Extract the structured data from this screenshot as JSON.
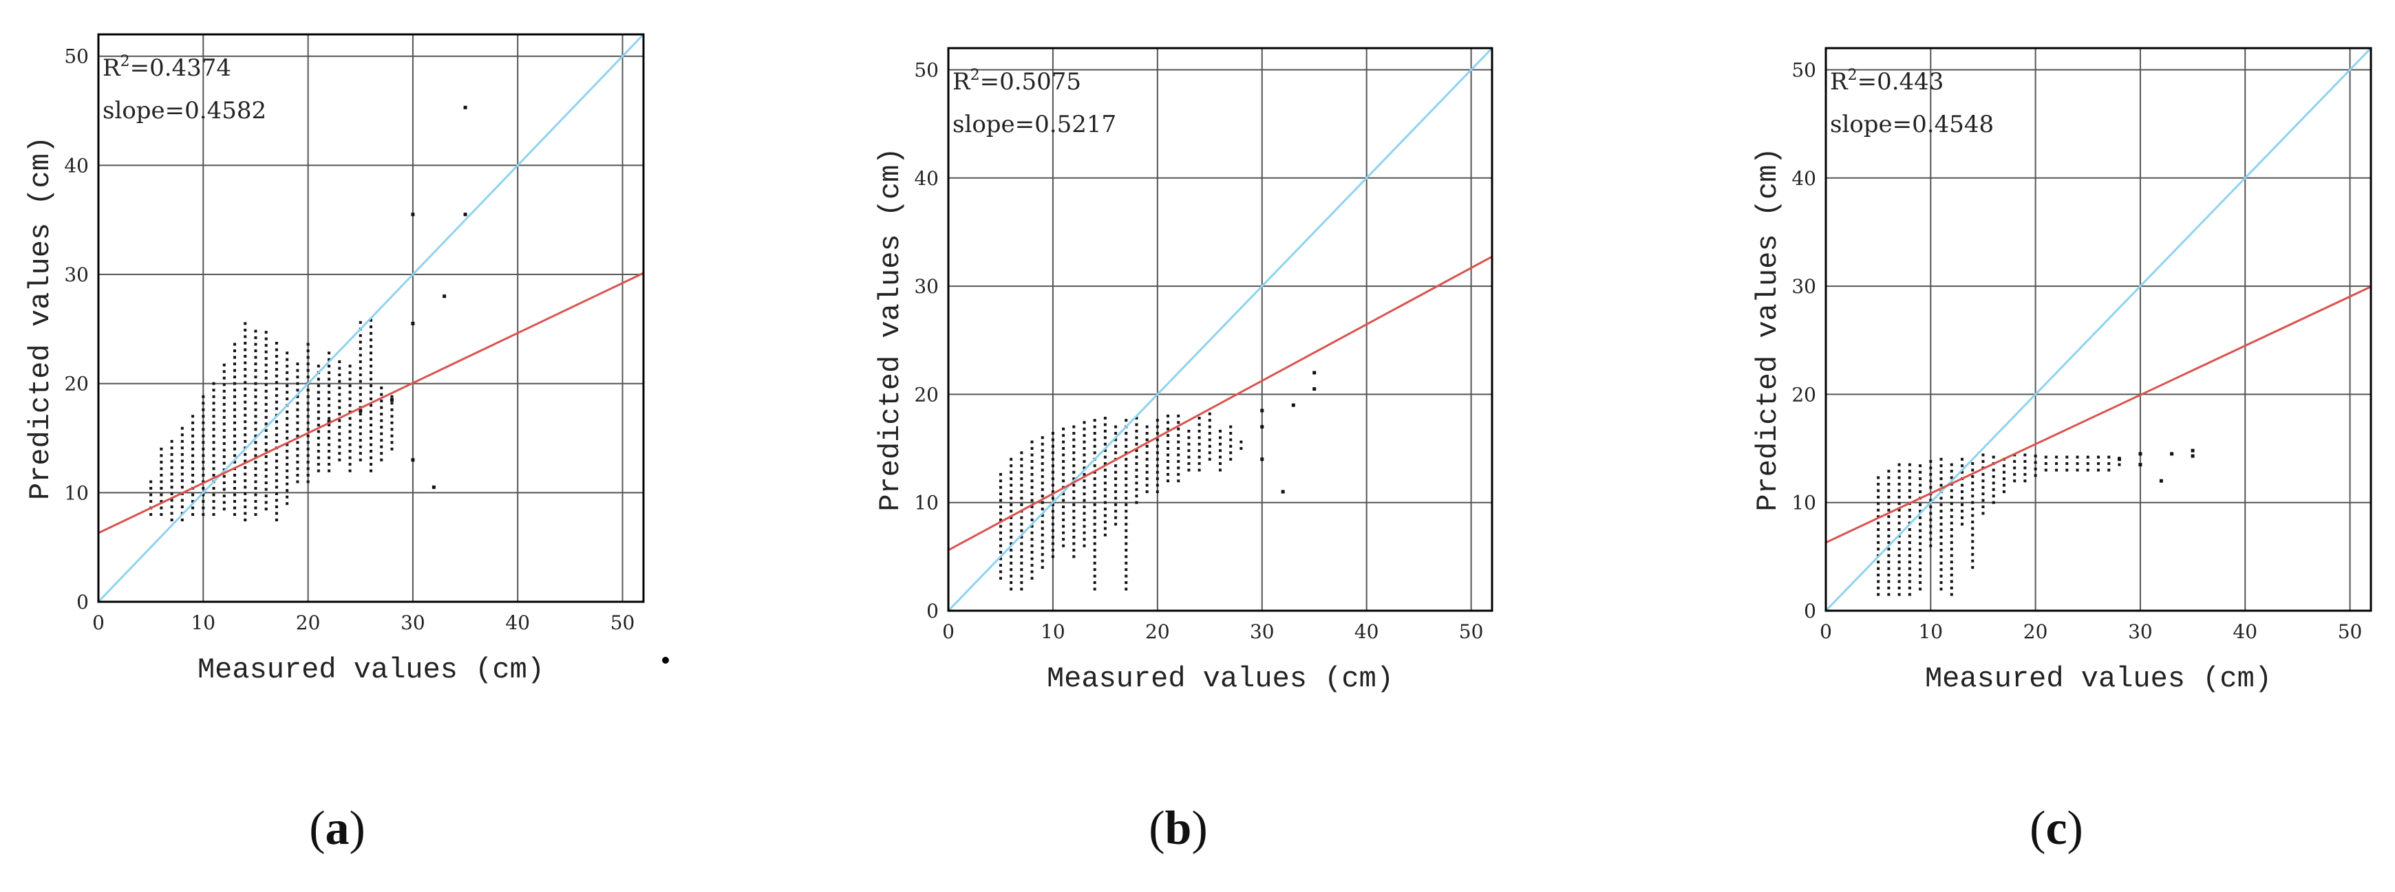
{
  "colors": {
    "identity_line": "#8fd3f0",
    "fit_line": "#d9534f",
    "points": "#111111",
    "grid": "#555555",
    "frame": "#000000"
  },
  "chart_data": [
    {
      "type": "scatter",
      "panel_label": "a",
      "xlabel": "Measured values (cm)",
      "ylabel": "Predicted values (cm)",
      "xlim": [
        0,
        52
      ],
      "ylim": [
        0,
        52
      ],
      "xticks": [
        0,
        10,
        20,
        30,
        40,
        50
      ],
      "yticks": [
        0,
        10,
        20,
        30,
        40,
        50
      ],
      "grid": true,
      "annotations": {
        "r2_label": "R",
        "r2_exp": "2",
        "r2_value": "=0.4374",
        "slope_text": "slope=0.4582"
      },
      "fit_line": {
        "slope": 0.4582,
        "intercept": 6.3
      },
      "identity_line": {
        "slope": 1,
        "intercept": 0
      },
      "point_cloud": {
        "x_values": [
          5,
          6,
          7,
          8,
          9,
          10,
          11,
          12,
          13,
          14,
          15,
          16,
          17,
          18,
          19,
          20,
          21,
          22,
          23,
          24,
          25,
          26,
          27,
          28
        ],
        "y_min": [
          8,
          8,
          7.5,
          7.5,
          8,
          8,
          8,
          8.5,
          8,
          7.5,
          8,
          8.5,
          7.5,
          9,
          11,
          11,
          12,
          12,
          13,
          12,
          13,
          12,
          13,
          14
        ],
        "y_max": [
          11,
          14,
          15,
          16,
          17,
          19,
          20,
          22,
          24,
          26,
          25,
          25,
          24,
          23,
          22,
          24,
          22,
          23,
          22,
          22,
          26,
          26,
          20,
          19
        ],
        "step": 0.6
      },
      "outliers": [
        [
          30,
          35.5
        ],
        [
          30,
          25.5
        ],
        [
          33,
          28
        ],
        [
          35,
          45.3
        ],
        [
          35,
          35.5
        ],
        [
          32,
          10.5
        ],
        [
          30,
          13
        ],
        [
          28,
          18.5
        ],
        [
          22,
          16.5
        ],
        [
          25,
          17.5
        ]
      ]
    },
    {
      "type": "scatter",
      "panel_label": "b",
      "xlabel": "Measured values (cm)",
      "ylabel": "Predicted values (cm)",
      "xlim": [
        0,
        52
      ],
      "ylim": [
        0,
        52
      ],
      "xticks": [
        0,
        10,
        20,
        30,
        40,
        50
      ],
      "yticks": [
        0,
        10,
        20,
        30,
        40,
        50
      ],
      "grid": true,
      "annotations": {
        "r2_label": "R",
        "r2_exp": "2",
        "r2_value": "=0.5075",
        "slope_text": "slope=0.5217"
      },
      "fit_line": {
        "slope": 0.5217,
        "intercept": 5.6
      },
      "identity_line": {
        "slope": 1,
        "intercept": 0
      },
      "point_cloud": {
        "x_values": [
          5,
          6,
          7,
          8,
          9,
          10,
          11,
          12,
          13,
          14,
          15,
          16,
          17,
          18,
          19,
          20,
          21,
          22,
          23,
          24,
          25,
          26,
          27,
          28
        ],
        "y_min": [
          3,
          2,
          2,
          3,
          4,
          5,
          6,
          5,
          6,
          2,
          7,
          8,
          2,
          10,
          11,
          11,
          12,
          12,
          13,
          13,
          14,
          13,
          14,
          15
        ],
        "y_max": [
          13,
          14,
          15,
          16,
          16,
          16.5,
          17,
          17.5,
          17.5,
          18,
          18,
          17.5,
          18,
          18,
          17.5,
          18,
          18,
          18,
          17,
          18,
          18.5,
          17,
          17,
          16
        ],
        "step": 0.6
      },
      "outliers": [
        [
          30,
          18.5
        ],
        [
          30,
          14
        ],
        [
          32,
          11
        ],
        [
          33,
          19
        ],
        [
          35,
          22
        ],
        [
          35,
          20.5
        ],
        [
          30,
          17
        ]
      ]
    },
    {
      "type": "scatter",
      "panel_label": "c",
      "xlabel": "Measured values (cm)",
      "ylabel": "Predicted values (cm)",
      "xlim": [
        0,
        52
      ],
      "ylim": [
        0,
        52
      ],
      "xticks": [
        0,
        10,
        20,
        30,
        40,
        50
      ],
      "yticks": [
        0,
        10,
        20,
        30,
        40,
        50
      ],
      "grid": true,
      "annotations": {
        "r2_label": "R",
        "r2_exp": "2",
        "r2_value": "=0.443",
        "slope_text": "slope=0.4548"
      },
      "fit_line": {
        "slope": 0.4548,
        "intercept": 6.3
      },
      "identity_line": {
        "slope": 1,
        "intercept": 0
      },
      "point_cloud": {
        "x_values": [
          5,
          6,
          7,
          8,
          9,
          10,
          11,
          12,
          13,
          14,
          15,
          16,
          17,
          18,
          19,
          20,
          21,
          22,
          23,
          24,
          25,
          26,
          27,
          28
        ],
        "y_min": [
          1.5,
          1.5,
          1.5,
          1.5,
          2,
          6,
          2,
          1.5,
          8,
          4,
          9,
          10,
          11,
          12,
          12,
          12.5,
          13,
          13,
          13,
          13,
          13,
          13,
          13,
          13.5
        ],
        "y_max": [
          12.5,
          13,
          13.5,
          13.5,
          13.5,
          14,
          14,
          14,
          14,
          14,
          14.5,
          14.5,
          14.5,
          14.5,
          14.5,
          14.5,
          14.5,
          14.5,
          14.5,
          14.5,
          14.5,
          14.5,
          14.5,
          14.5
        ],
        "step": 0.6
      },
      "outliers": [
        [
          30,
          14.5
        ],
        [
          30,
          13.5
        ],
        [
          32,
          12
        ],
        [
          33,
          14.5
        ],
        [
          35,
          14.8
        ],
        [
          35,
          14.3
        ],
        [
          28,
          14
        ]
      ]
    }
  ]
}
